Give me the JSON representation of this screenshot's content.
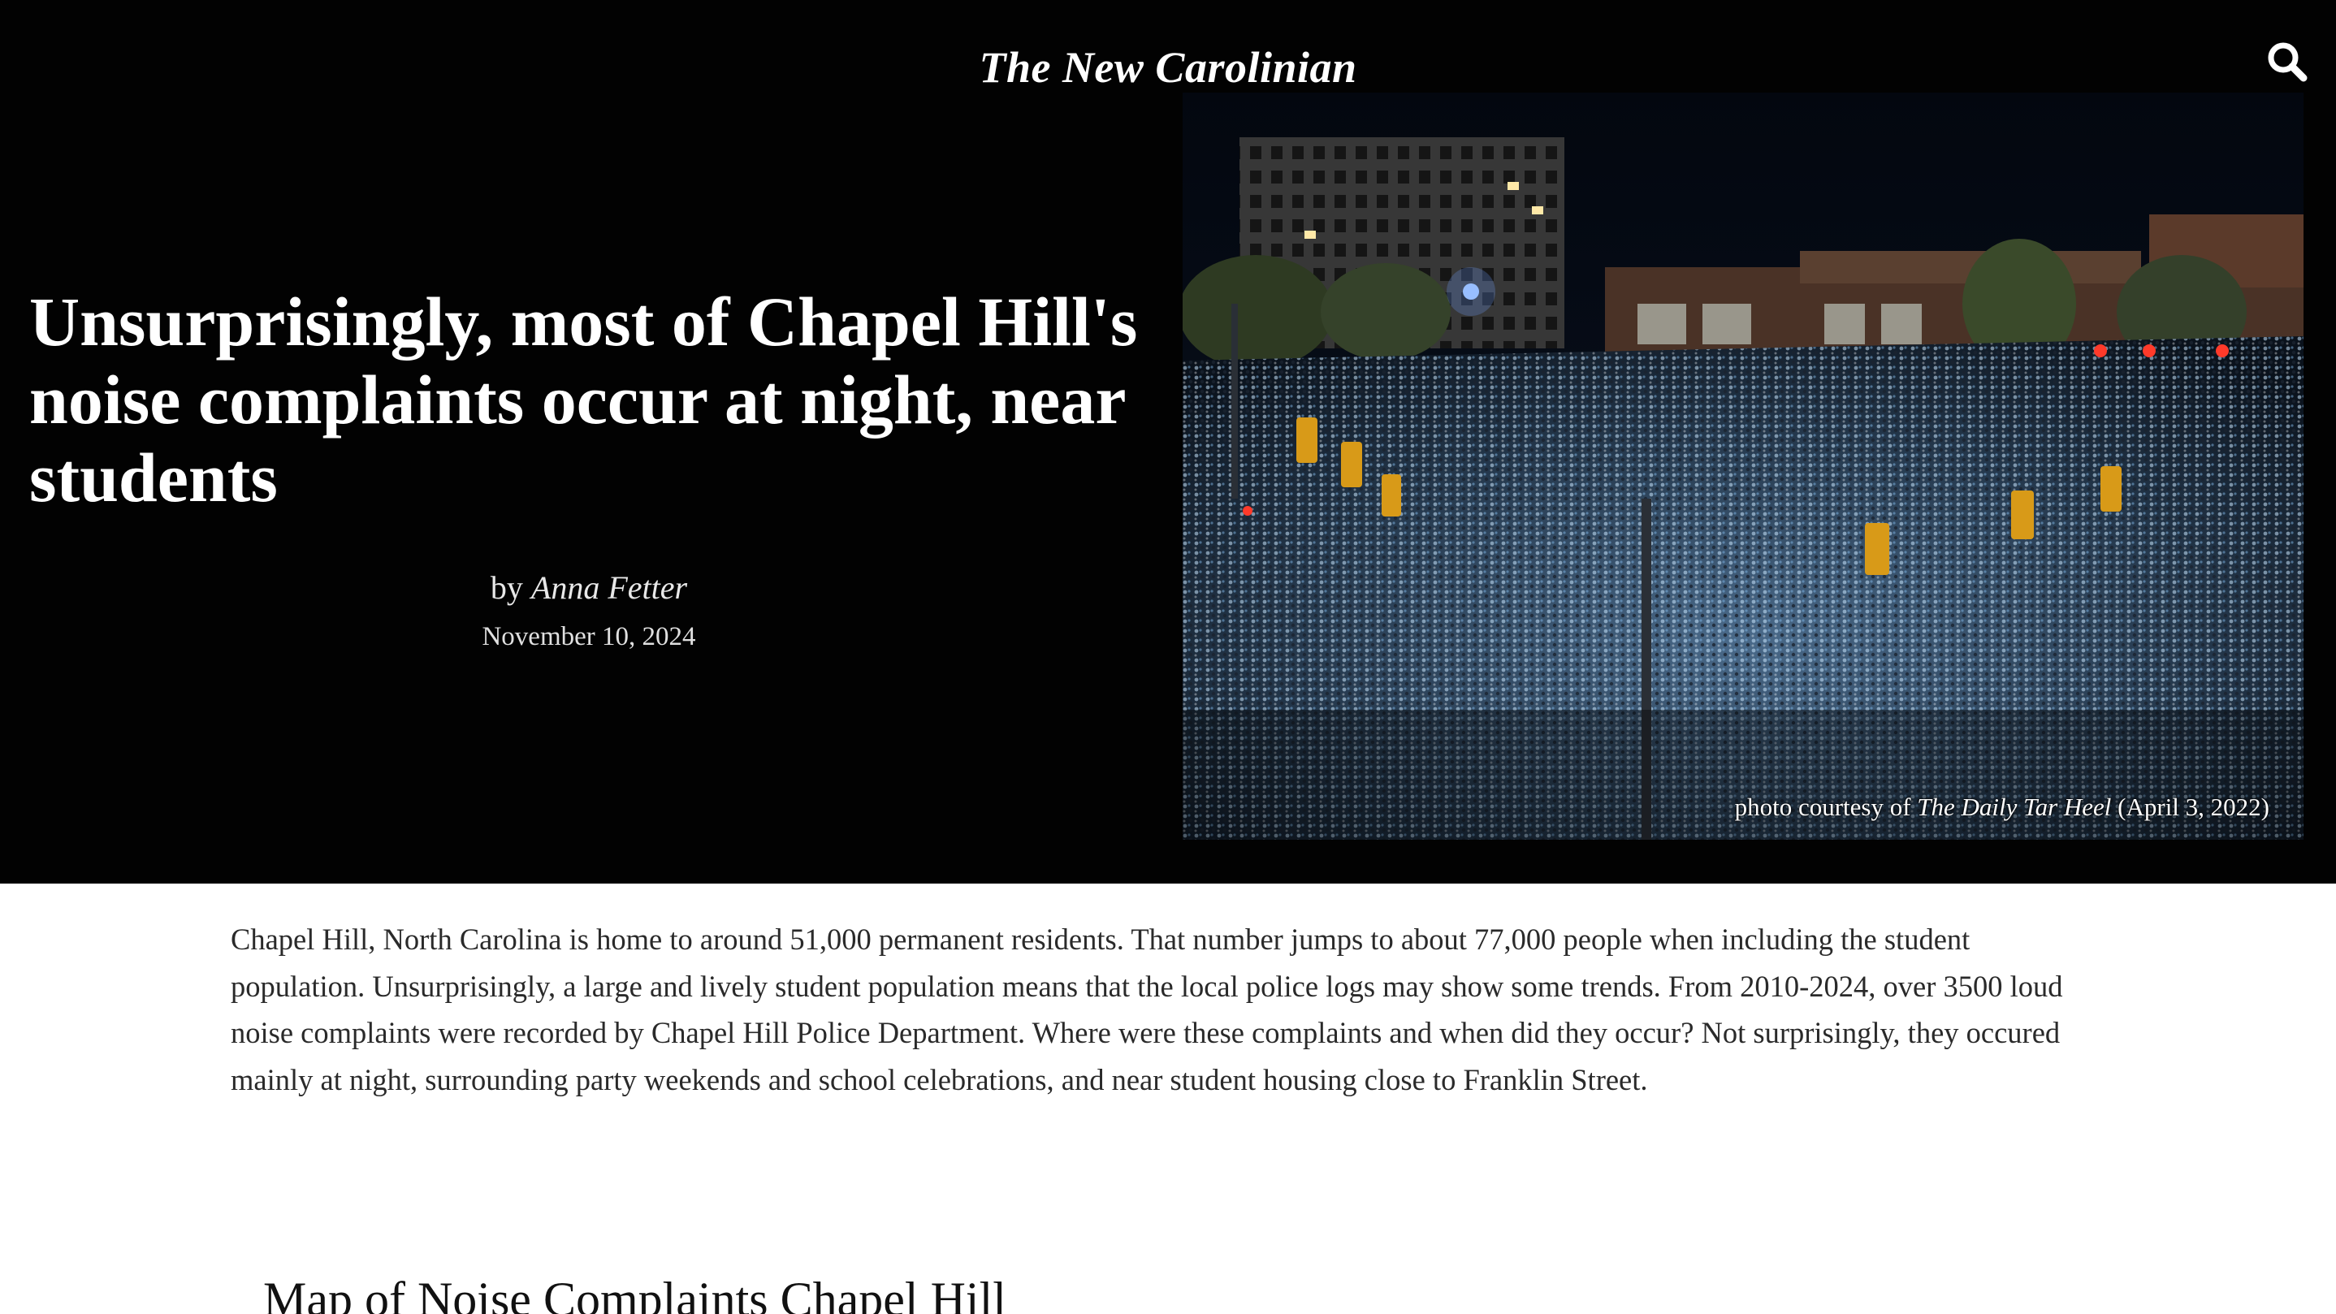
{
  "site": {
    "title": "The New Carolinian"
  },
  "icons": {
    "search": "search-icon"
  },
  "colors": {
    "hero_background": "#020202",
    "hero_text": "#ffffff",
    "body_text": "#2a2a2a",
    "page_background": "#ffffff"
  },
  "article": {
    "headline": "Unsurprisingly, most of Chapel Hill's noise complaints occur at night, near students",
    "byline_prefix": "by",
    "author": "Anna Fetter",
    "date": "November 10, 2024",
    "photo_caption": {
      "prefix": "photo courtesy of",
      "publication": "The Daily Tar Heel",
      "suffix": "(April 3, 2022)"
    },
    "intro": "Chapel Hill, North Carolina is home to around 51,000 permanent residents. That number jumps to about 77,000 people when including the student population. Unsurprisingly, a large and lively student population means that the local police logs may show some trends. From 2010-2024, over 3500 loud noise complaints were recorded by Chapel Hill Police Department. Where were these complaints and when did they occur? Not surprisingly, they occured mainly at night, surrounding party weekends and school celebrations, and near student housing close to Franklin Street.",
    "section_title": "Map of Noise Complaints Chapel Hill"
  }
}
